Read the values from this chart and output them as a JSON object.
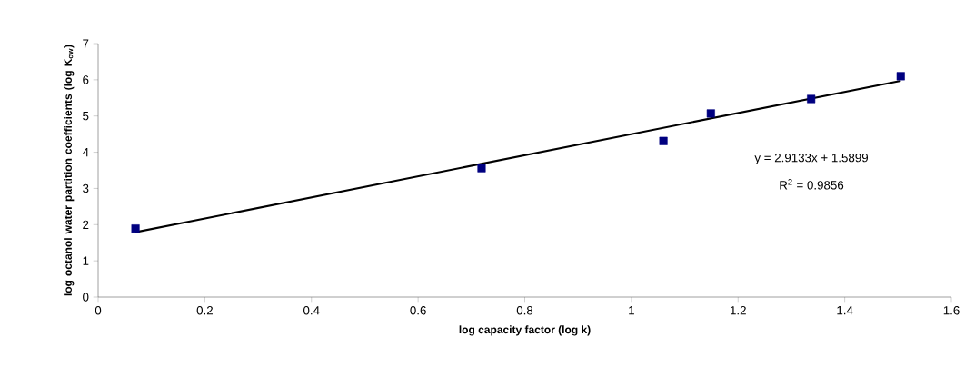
{
  "chart_data": {
    "type": "scatter",
    "xlabel": "log capacity factor (log k)",
    "ylabel": "log octanol water partition coefficients (log K$_{ow}$)",
    "xlim": [
      0,
      1.6
    ],
    "ylim": [
      0,
      7
    ],
    "xticks": [
      0,
      0.2,
      0.4,
      0.6,
      0.8,
      1,
      1.2,
      1.4,
      1.6
    ],
    "yticks": [
      0,
      1,
      2,
      3,
      4,
      5,
      6,
      7
    ],
    "marker": "square",
    "grid": false,
    "annotations": [
      "y = 2.9133x + 1.5899",
      "R$^{2}$ = 0.9856"
    ],
    "series": [
      {
        "color": "#000080",
        "x": [
          0.07,
          0.719,
          1.06,
          1.149,
          1.337,
          1.505
        ],
        "values": [
          1.89,
          3.56,
          4.31,
          5.07,
          5.47,
          6.1
        ]
      },
      {
        "type": "line",
        "color": "#000000",
        "marker": "none",
        "x": [
          0.07,
          1.505
        ],
        "values": [
          1.79,
          5.97
        ]
      }
    ]
  }
}
